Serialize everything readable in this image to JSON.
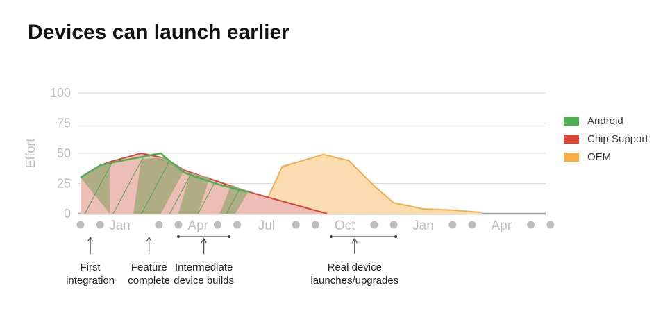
{
  "title": "Devices can launch earlier",
  "chart_data": {
    "type": "area",
    "title": "Devices can launch earlier",
    "ylabel": "Effort",
    "xlabel": "",
    "ylim": [
      0,
      100
    ],
    "yticks": [
      "0",
      "25",
      "50",
      "75",
      "100"
    ],
    "x_slots": 25,
    "x_tick_labels": [
      {
        "slot": 2,
        "label": "Jan"
      },
      {
        "slot": 6,
        "label": "Apr"
      },
      {
        "slot": 9.5,
        "label": "Jul"
      },
      {
        "slot": 13.5,
        "label": "Oct"
      },
      {
        "slot": 17.5,
        "label": "Jan"
      },
      {
        "slot": 21.5,
        "label": "Apr"
      }
    ],
    "x_dot_slots": [
      0,
      1,
      4,
      5,
      7,
      8,
      11,
      12,
      15,
      16,
      19,
      20,
      23,
      24
    ],
    "grid": true,
    "legend_position": "right",
    "series": [
      {
        "name": "Android",
        "color": "#4CAF50",
        "fill": "#A8AB7E",
        "x": [
          0,
          1,
          1.5,
          4.1,
          4.3,
          5.3,
          6,
          7.1,
          8.3,
          8.6
        ],
        "y": [
          30,
          40,
          42,
          50,
          47,
          34,
          30,
          24,
          19,
          18
        ]
      },
      {
        "name": "Chip Support",
        "color": "#DB4437",
        "fill": "#EDBEB6",
        "x": [
          0,
          1,
          1.5,
          3.1,
          4.3,
          5.3,
          8.6,
          12.6
        ],
        "y": [
          30,
          40,
          43,
          50,
          46,
          36,
          18,
          0
        ]
      },
      {
        "name": "OEM",
        "color": "#F6AE49",
        "fill": "#FBDDB1",
        "x": [
          9.2,
          10.3,
          12.4,
          13.7,
          15.0,
          16.0,
          17.5,
          19.0,
          20.5
        ],
        "y": [
          0,
          39,
          49,
          44,
          23,
          9,
          4,
          3,
          1
        ]
      }
    ],
    "android_segments": [
      {
        "x": [
          0,
          1,
          1.5,
          1.5
        ],
        "y": [
          30,
          40,
          42,
          0
        ]
      },
      {
        "x": [
          2.7,
          3.1,
          4.3,
          5.3,
          4.1
        ],
        "y": [
          0,
          45,
          47,
          36,
          0
        ]
      },
      {
        "x": [
          5.0,
          5.6,
          6.6,
          6.0
        ],
        "y": [
          0,
          34,
          30,
          0
        ]
      },
      {
        "x": [
          7.1,
          7.7,
          8.3,
          8.6,
          7.9
        ],
        "y": [
          0,
          24,
          20,
          19,
          0
        ]
      }
    ],
    "annotations": [
      {
        "label": "First\nintegration",
        "slot": 0.5
      },
      {
        "label": "Feature\ncomplete",
        "slot": 3.5
      },
      {
        "label": "Intermediate\ndevice builds",
        "slot": 6.3,
        "span": [
          5,
          7.6
        ]
      },
      {
        "label": "Real device\nlaunches/upgrades",
        "slot": 14.0,
        "span": [
          12.8,
          16.1
        ]
      }
    ]
  }
}
